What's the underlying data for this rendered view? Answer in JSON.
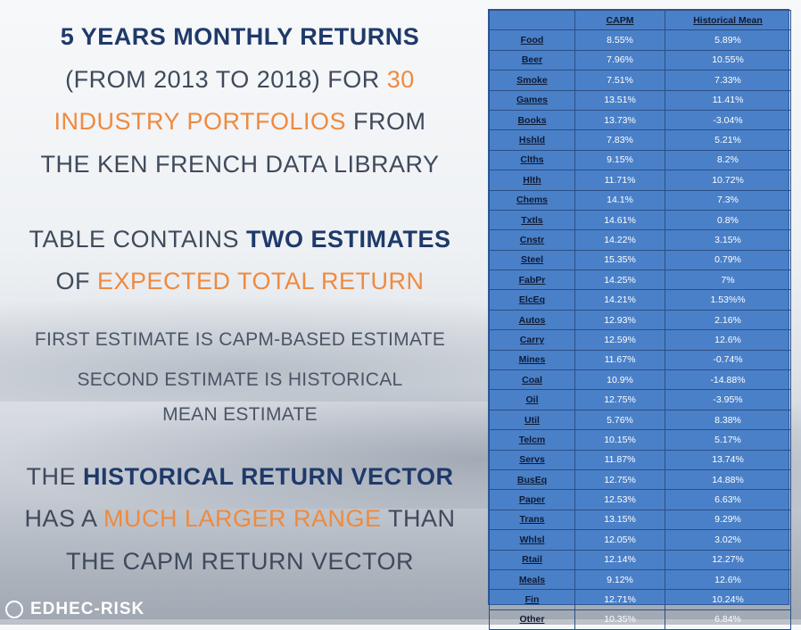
{
  "left": {
    "l1": "5 YEARS MONTHLY RETURNS",
    "l2": "(FROM 2013 TO 2018) FOR ",
    "l2_num": "30",
    "l3_orange": "INDUSTRY PORTFOLIOS",
    "l3_rest": " FROM",
    "l4": "THE KEN FRENCH DATA LIBRARY",
    "l5_a": "TABLE CONTAINS ",
    "l5_b": "TWO ESTIMATES",
    "l6_a": "OF ",
    "l6_b": "EXPECTED TOTAL RETURN",
    "l7": "FIRST ESTIMATE IS CAPM-BASED ESTIMATE",
    "l8": "SECOND ESTIMATE IS HISTORICAL",
    "l9": "MEAN ESTIMATE",
    "l10_a": "THE ",
    "l10_b": "HISTORICAL RETURN VECTOR",
    "l11_a": "HAS A ",
    "l11_b": "MUCH LARGER RANGE",
    "l11_c": " THAN",
    "l12": "THE CAPM RETURN VECTOR"
  },
  "logo": {
    "text": "EDHEC-RISK"
  },
  "table": {
    "headers": [
      "",
      "CAPM",
      "Historical Mean"
    ],
    "rows": [
      [
        "Food",
        "8.55%",
        "5.89%"
      ],
      [
        "Beer",
        "7.96%",
        "10.55%"
      ],
      [
        "Smoke",
        "7.51%",
        "7.33%"
      ],
      [
        "Games",
        "13.51%",
        "11.41%"
      ],
      [
        "Books",
        "13.73%",
        "-3.04%"
      ],
      [
        "Hshld",
        "7.83%",
        "5.21%"
      ],
      [
        "Clths",
        "9.15%",
        "8.2%"
      ],
      [
        "Hlth",
        "11.71%",
        "10.72%"
      ],
      [
        "Chems",
        "14.1%",
        "7.3%"
      ],
      [
        "Txtls",
        "14.61%",
        "0.8%"
      ],
      [
        "Cnstr",
        "14.22%",
        "3.15%"
      ],
      [
        "Steel",
        "15.35%",
        "0.79%"
      ],
      [
        "FabPr",
        "14.25%",
        "7%"
      ],
      [
        "ElcEq",
        "14.21%",
        "1.53%%"
      ],
      [
        "Autos",
        "12.93%",
        "2.16%"
      ],
      [
        "Carry",
        "12.59%",
        "12.6%"
      ],
      [
        "Mines",
        "11.67%",
        "-0.74%"
      ],
      [
        "Coal",
        "10.9%",
        "-14.88%"
      ],
      [
        "Oil",
        "12.75%",
        "-3.95%"
      ],
      [
        "Util",
        "5.76%",
        "8.38%"
      ],
      [
        "Telcm",
        "10.15%",
        "5.17%"
      ],
      [
        "Servs",
        "11.87%",
        "13.74%"
      ],
      [
        "BusEq",
        "12.75%",
        "14.88%"
      ],
      [
        "Paper",
        "12.53%",
        "6.63%"
      ],
      [
        "Trans",
        "13.15%",
        "9.29%"
      ],
      [
        "Whlsl",
        "12.05%",
        "3.02%"
      ],
      [
        "Rtail",
        "12.14%",
        "12.27%"
      ],
      [
        "Meals",
        "9.12%",
        "12.6%"
      ],
      [
        "Fin",
        "12.71%",
        "10.24%"
      ],
      [
        "Other",
        "10.35%",
        "6.84%"
      ]
    ]
  }
}
